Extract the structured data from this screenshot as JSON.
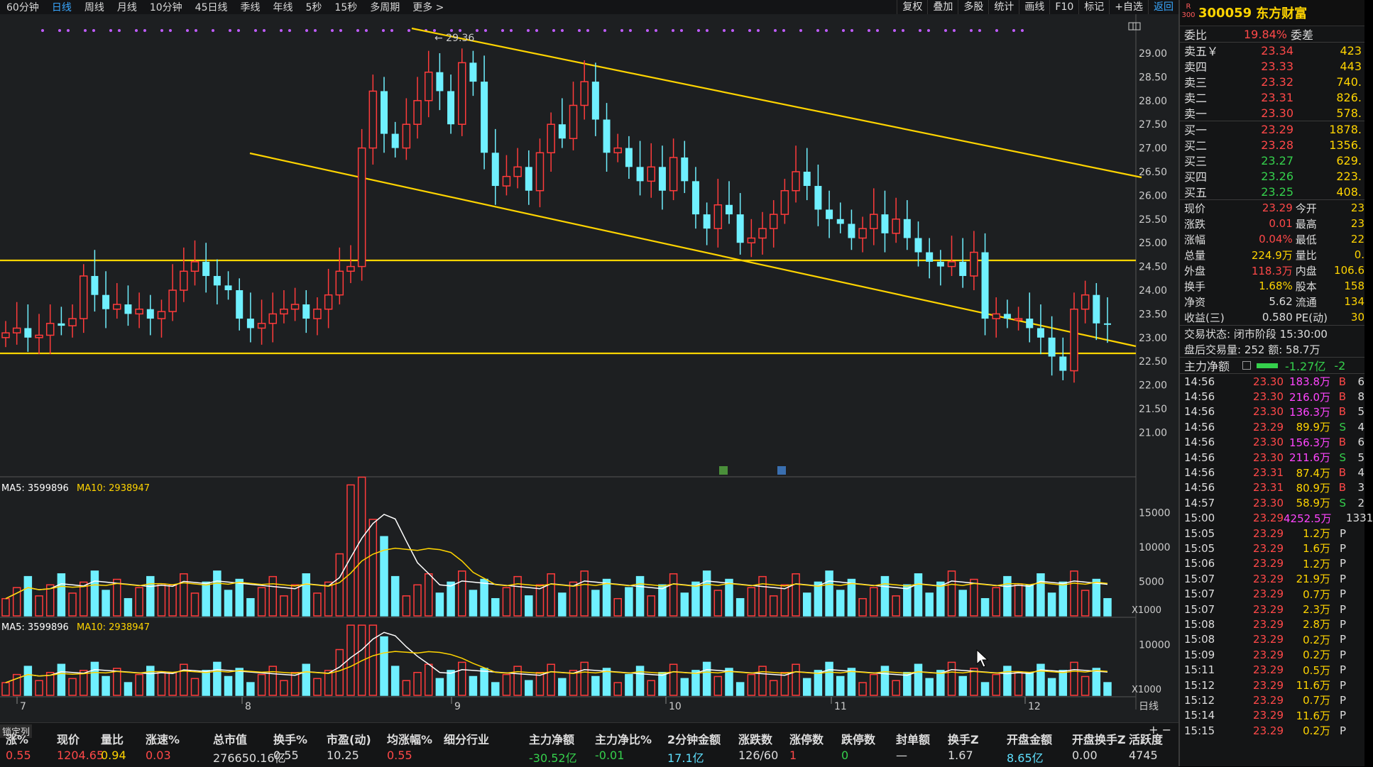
{
  "toolbar": {
    "periods": [
      "60分钟",
      "日线",
      "周线",
      "月线",
      "10分钟",
      "45日线",
      "季线",
      "年线",
      "5秒",
      "15秒",
      "多周期",
      "更多 >"
    ],
    "active_period": "日线",
    "tools": [
      "复权",
      "叠加",
      "多股",
      "统计",
      "画线",
      "F10",
      "标记",
      "+自选",
      "返回"
    ],
    "active_tool": "返回"
  },
  "chart": {
    "ohlc_ticks": [
      "29.00",
      "28.50",
      "28.00",
      "27.50",
      "27.00",
      "26.50",
      "26.00",
      "25.50",
      "25.00",
      "24.50",
      "24.00",
      "23.50",
      "23.00",
      "22.50",
      "22.00",
      "21.50",
      "21.00"
    ],
    "high_label": "29.36",
    "date_labels": [
      "7",
      "8",
      "9",
      "10",
      "11",
      "12"
    ],
    "period_label": "日线",
    "vol_legend_ma5": "MA5: 3599896",
    "vol_legend_ma10": "MA10: 2938947",
    "vol_ticks": [
      "15000",
      "10000",
      "5000"
    ],
    "vol_unit": "X1000",
    "vol2_legend_ma5": "MA5: 3599896",
    "vol2_legend_ma10": "MA10: 2938947",
    "vol2_ticks": [
      "10000"
    ],
    "vol2_unit": "X1000",
    "colors": {
      "up": "#ff3b3b",
      "down": "#6ff0ff",
      "trendline": "#ffd400",
      "ma5": "#ffffff",
      "ma10": "#ffd400",
      "dot": "#c05cff"
    }
  },
  "quote": {
    "r_label": "R\n300",
    "code": "300059",
    "name": "东方财富",
    "weibi_label": "委比",
    "weibi_value": "19.84%",
    "weicha_label": "委差",
    "sells": [
      {
        "label": "卖五￥",
        "price": "23.34",
        "vol": "423"
      },
      {
        "label": "卖四",
        "price": "23.33",
        "vol": "443"
      },
      {
        "label": "卖三",
        "price": "23.32",
        "vol": "740."
      },
      {
        "label": "卖二",
        "price": "23.31",
        "vol": "826."
      },
      {
        "label": "卖一",
        "price": "23.30",
        "vol": "578."
      }
    ],
    "buys": [
      {
        "label": "买一",
        "price": "23.29",
        "vol": "1878."
      },
      {
        "label": "买二",
        "price": "23.28",
        "vol": "1356."
      },
      {
        "label": "买三",
        "price": "23.27",
        "vol": "629."
      },
      {
        "label": "买四",
        "price": "23.26",
        "vol": "223."
      },
      {
        "label": "买五",
        "price": "23.25",
        "vol": "408."
      }
    ],
    "info": [
      {
        "l": "现价",
        "v": "23.29",
        "c": "red",
        "l2": "今开",
        "v2": "23"
      },
      {
        "l": "涨跌",
        "v": "0.01",
        "c": "red",
        "l2": "最高",
        "v2": "23"
      },
      {
        "l": "涨幅",
        "v": "0.04%",
        "c": "red",
        "l2": "最低",
        "v2": "22"
      },
      {
        "l": "总量",
        "v": "224.9万",
        "c": "yel",
        "l2": "量比",
        "v2": "0."
      },
      {
        "l": "外盘",
        "v": "118.3万",
        "c": "red",
        "l2": "内盘",
        "v2": "106.6"
      },
      {
        "l": "换手",
        "v": "1.68%",
        "c": "yel",
        "l2": "股本",
        "v2": "158"
      },
      {
        "l": "净资",
        "v": "5.62",
        "c": "wht",
        "l2": "流通",
        "v2": "134"
      },
      {
        "l": "收益(三)",
        "v": "0.580",
        "c": "wht",
        "l2": "PE(动)",
        "v2": "30"
      }
    ],
    "trade_status": "交易状态: 闭市阶段 15:30:00",
    "after_hours": "盘后交易量: 252  额: 58.7万",
    "main_net_label": "主力净额",
    "main_net_value": "-1.27亿",
    "main_net_extra": "-2"
  },
  "trades": [
    {
      "t": "14:56",
      "p": "23.30",
      "pc": "red",
      "a": "183.8万",
      "ac": "mag",
      "s": "B",
      "n": "6"
    },
    {
      "t": "14:56",
      "p": "23.30",
      "pc": "red",
      "a": "216.0万",
      "ac": "mag",
      "s": "B",
      "n": "8"
    },
    {
      "t": "14:56",
      "p": "23.30",
      "pc": "red",
      "a": "136.3万",
      "ac": "mag",
      "s": "B",
      "n": "5"
    },
    {
      "t": "14:56",
      "p": "23.29",
      "pc": "red",
      "a": "89.9万",
      "ac": "yel",
      "s": "S",
      "n": "4"
    },
    {
      "t": "14:56",
      "p": "23.30",
      "pc": "red",
      "a": "156.3万",
      "ac": "mag",
      "s": "B",
      "n": "6"
    },
    {
      "t": "14:56",
      "p": "23.30",
      "pc": "red",
      "a": "211.6万",
      "ac": "mag",
      "s": "S",
      "n": "5"
    },
    {
      "t": "14:56",
      "p": "23.31",
      "pc": "red",
      "a": "87.4万",
      "ac": "yel",
      "s": "B",
      "n": "4"
    },
    {
      "t": "14:56",
      "p": "23.31",
      "pc": "red",
      "a": "80.9万",
      "ac": "yel",
      "s": "B",
      "n": "3"
    },
    {
      "t": "14:57",
      "p": "23.30",
      "pc": "red",
      "a": "58.9万",
      "ac": "yel",
      "s": "S",
      "n": "2"
    },
    {
      "t": "15:00",
      "p": "23.29",
      "pc": "red",
      "a": "4252.5万",
      "ac": "mag",
      "s": "",
      "n": "1331"
    },
    {
      "t": "15:05",
      "p": "23.29",
      "pc": "red",
      "a": "1.2万",
      "ac": "yel",
      "s": "P",
      "n": ""
    },
    {
      "t": "15:05",
      "p": "23.29",
      "pc": "red",
      "a": "1.6万",
      "ac": "yel",
      "s": "P",
      "n": ""
    },
    {
      "t": "15:06",
      "p": "23.29",
      "pc": "red",
      "a": "1.2万",
      "ac": "yel",
      "s": "P",
      "n": ""
    },
    {
      "t": "15:07",
      "p": "23.29",
      "pc": "red",
      "a": "21.9万",
      "ac": "yel",
      "s": "P",
      "n": ""
    },
    {
      "t": "15:07",
      "p": "23.29",
      "pc": "red",
      "a": "0.7万",
      "ac": "yel",
      "s": "P",
      "n": ""
    },
    {
      "t": "15:07",
      "p": "23.29",
      "pc": "red",
      "a": "2.3万",
      "ac": "yel",
      "s": "P",
      "n": ""
    },
    {
      "t": "15:08",
      "p": "23.29",
      "pc": "red",
      "a": "2.8万",
      "ac": "yel",
      "s": "P",
      "n": ""
    },
    {
      "t": "15:08",
      "p": "23.29",
      "pc": "red",
      "a": "0.2万",
      "ac": "yel",
      "s": "P",
      "n": ""
    },
    {
      "t": "15:09",
      "p": "23.29",
      "pc": "red",
      "a": "0.2万",
      "ac": "yel",
      "s": "P",
      "n": ""
    },
    {
      "t": "15:11",
      "p": "23.29",
      "pc": "red",
      "a": "0.5万",
      "ac": "yel",
      "s": "P",
      "n": ""
    },
    {
      "t": "15:12",
      "p": "23.29",
      "pc": "red",
      "a": "11.6万",
      "ac": "yel",
      "s": "P",
      "n": ""
    },
    {
      "t": "15:12",
      "p": "23.29",
      "pc": "red",
      "a": "0.7万",
      "ac": "yel",
      "s": "P",
      "n": ""
    },
    {
      "t": "15:14",
      "p": "23.29",
      "pc": "red",
      "a": "11.6万",
      "ac": "yel",
      "s": "P",
      "n": ""
    },
    {
      "t": "15:15",
      "p": "23.29",
      "pc": "red",
      "a": "0.2万",
      "ac": "yel",
      "s": "P",
      "n": ""
    }
  ],
  "bottom": {
    "lock_label": "锁定列",
    "plus_minus": "+  −",
    "cells": [
      {
        "h": "涨%",
        "v": "0.55",
        "c": "red"
      },
      {
        "h": "现价",
        "v": "1204.65",
        "c": "red"
      },
      {
        "h": "量比",
        "v": "0.94",
        "c": "yel"
      },
      {
        "h": "涨速%",
        "v": "0.03",
        "c": "red"
      },
      {
        "h": "总市值",
        "v": "276650.16亿",
        "c": "wht"
      },
      {
        "h": "换手%",
        "v": "0.55",
        "c": "wht"
      },
      {
        "h": "市盈(动)",
        "v": "10.25",
        "c": "wht"
      },
      {
        "h": "均涨幅%",
        "v": "0.55",
        "c": "red"
      },
      {
        "h": "细分行业",
        "v": "",
        "c": "wht"
      },
      {
        "h": "主力净额",
        "v": "-30.52亿",
        "c": "grn"
      },
      {
        "h": "主力净比%",
        "v": "-0.01",
        "c": "grn"
      },
      {
        "h": "2分钟金额",
        "v": "17.1亿",
        "c": "cyn"
      },
      {
        "h": "涨跌数",
        "v": "126/60",
        "c": "wht"
      },
      {
        "h": "涨停数",
        "v": "1",
        "c": "red"
      },
      {
        "h": "跌停数",
        "v": "0",
        "c": "grn"
      },
      {
        "h": "封单额",
        "v": "—",
        "c": "wht"
      },
      {
        "h": "换手Z",
        "v": "1.67",
        "c": "wht"
      },
      {
        "h": "开盘金额",
        "v": "8.65亿",
        "c": "cyn"
      },
      {
        "h": "开盘换手Z",
        "v": "0.00",
        "c": "wht"
      },
      {
        "h": "活跃度",
        "v": "4745",
        "c": "wht"
      }
    ]
  }
}
